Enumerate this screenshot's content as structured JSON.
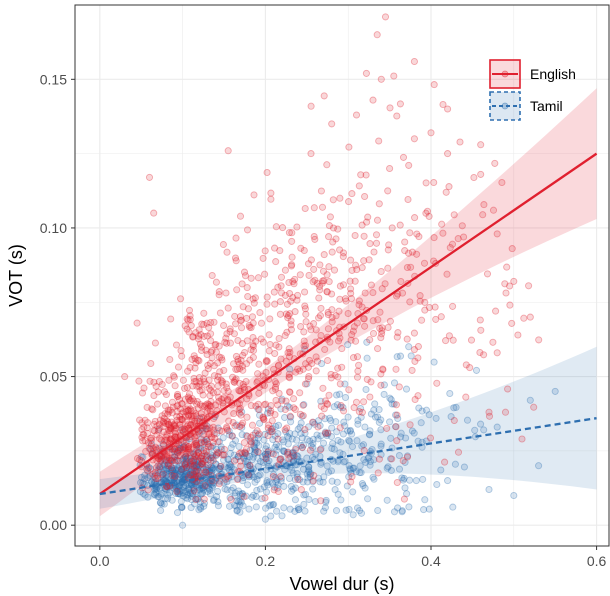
{
  "chart_data": {
    "type": "scatter",
    "title": "",
    "xlabel": "Vowel dur (s)",
    "ylabel": "VOT (s)",
    "xlim": [
      -0.03,
      0.615
    ],
    "ylim": [
      -0.007,
      0.175
    ],
    "x_ticks": [
      0.0,
      0.2,
      0.4,
      0.6
    ],
    "x_tick_labels": [
      "0.0",
      "0.2",
      "0.4",
      "0.6"
    ],
    "y_ticks": [
      0.0,
      0.05,
      0.1,
      0.15
    ],
    "y_tick_labels": [
      "0.00",
      "0.05",
      "0.10",
      "0.15"
    ],
    "grid": true,
    "legend_position": "top-right",
    "series": [
      {
        "name": "English",
        "color": "#e0202f",
        "line_style": "solid",
        "fit": {
          "x_start": 0.0,
          "y_start": 0.0105,
          "x_end": 0.6,
          "y_end": 0.125
        },
        "ribbon_halfwidth_start": 0.0075,
        "ribbon_halfwidth_middle": 0.004,
        "ribbon_halfwidth_end": 0.022,
        "cloud": [
          {
            "cx": 0.1,
            "cy": 0.03,
            "sx": 0.03,
            "sy": 0.012,
            "n": 380
          },
          {
            "cx": 0.16,
            "cy": 0.048,
            "sx": 0.05,
            "sy": 0.02,
            "n": 320
          },
          {
            "cx": 0.26,
            "cy": 0.066,
            "sx": 0.055,
            "sy": 0.024,
            "n": 280
          },
          {
            "cx": 0.34,
            "cy": 0.085,
            "sx": 0.055,
            "sy": 0.026,
            "n": 130
          },
          {
            "cx": 0.44,
            "cy": 0.07,
            "sx": 0.04,
            "sy": 0.02,
            "n": 45
          }
        ],
        "outliers": [
          [
            0.345,
            0.171
          ],
          [
            0.335,
            0.165
          ],
          [
            0.38,
            0.156
          ],
          [
            0.322,
            0.152
          ],
          [
            0.34,
            0.15
          ],
          [
            0.31,
            0.138
          ],
          [
            0.33,
            0.143
          ],
          [
            0.28,
            0.135
          ],
          [
            0.46,
            0.128
          ],
          [
            0.155,
            0.126
          ],
          [
            0.06,
            0.117
          ],
          [
            0.065,
            0.105
          ],
          [
            0.29,
            0.11
          ],
          [
            0.4,
            0.132
          ],
          [
            0.42,
            0.14
          ],
          [
            0.46,
            0.118
          ],
          [
            0.48,
            0.098
          ],
          [
            0.5,
            0.082
          ],
          [
            0.52,
            0.07
          ],
          [
            0.48,
            0.058
          ],
          [
            0.49,
            0.038
          ],
          [
            0.505,
            0.064
          ],
          [
            0.47,
            0.038
          ],
          [
            0.03,
            0.05
          ],
          [
            0.045,
            0.068
          ],
          [
            0.42,
            0.125
          ],
          [
            0.38,
            0.13
          ],
          [
            0.255,
            0.125
          ],
          [
            0.35,
            0.12
          ]
        ],
        "n_points": 1184
      },
      {
        "name": "Tamil",
        "color": "#2e6fb0",
        "line_style": "dashed",
        "fit": {
          "x_start": 0.0,
          "y_start": 0.0105,
          "x_end": 0.6,
          "y_end": 0.036
        },
        "ribbon_halfwidth_start": 0.005,
        "ribbon_halfwidth_middle": 0.003,
        "ribbon_halfwidth_end": 0.024,
        "cloud": [
          {
            "cx": 0.1,
            "cy": 0.016,
            "sx": 0.025,
            "sy": 0.006,
            "n": 380
          },
          {
            "cx": 0.18,
            "cy": 0.02,
            "sx": 0.045,
            "sy": 0.009,
            "n": 260
          },
          {
            "cx": 0.27,
            "cy": 0.024,
            "sx": 0.05,
            "sy": 0.011,
            "n": 210
          },
          {
            "cx": 0.36,
            "cy": 0.03,
            "sx": 0.045,
            "sy": 0.014,
            "n": 90
          }
        ],
        "outliers": [
          [
            0.55,
            0.045
          ],
          [
            0.48,
            0.033
          ],
          [
            0.52,
            0.042
          ],
          [
            0.47,
            0.012
          ],
          [
            0.42,
            0.015
          ],
          [
            0.1,
            0.0
          ],
          [
            0.2,
            0.002
          ],
          [
            0.5,
            0.01
          ],
          [
            0.53,
            0.02
          ]
        ],
        "n_points": 949
      }
    ]
  }
}
